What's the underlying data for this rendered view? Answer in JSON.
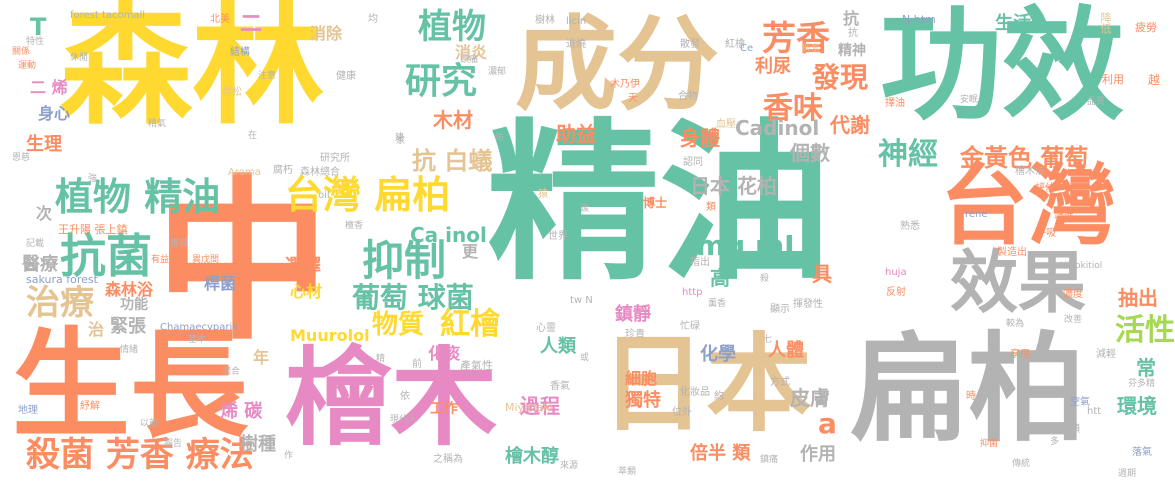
{
  "palette": {
    "green": "#66c2a5",
    "orange": "#fc8d62",
    "blue": "#8da0cb",
    "pink": "#e78ac3",
    "lime": "#a6d854",
    "yellow": "#ffd92f",
    "tan": "#e5c494",
    "gray": "#b3b3b3"
  },
  "words": [
    {
      "id": "w-jingyou",
      "text": "精油",
      "color": "green"
    },
    {
      "id": "w-senlin",
      "text": "森林",
      "color": "yellow"
    },
    {
      "id": "w-zhong",
      "text": "中",
      "color": "orange"
    },
    {
      "id": "w-shengzhang",
      "text": "生長",
      "color": "orange"
    },
    {
      "id": "w-gongxiao",
      "text": "功效",
      "color": "green"
    },
    {
      "id": "w-chengfen",
      "text": "成分",
      "color": "tan"
    },
    {
      "id": "w-bianbai",
      "text": "扁柏",
      "color": "gray"
    },
    {
      "id": "w-huimu",
      "text": "檜木",
      "color": "pink"
    },
    {
      "id": "w-riben",
      "text": "日本",
      "color": "tan"
    },
    {
      "id": "w-taiwan",
      "text": "台灣",
      "color": "orange"
    },
    {
      "id": "w-xiaoguo",
      "text": "效果",
      "color": "gray"
    },
    {
      "id": "w-taiwan-bianbai",
      "text": "台灣 扁柏",
      "color": "yellow"
    },
    {
      "id": "w-zhiwu-jingyou",
      "text": "植物 精油",
      "color": "green"
    },
    {
      "id": "w-kangjun",
      "text": "抗菌",
      "color": "green"
    },
    {
      "id": "w-zhiliao",
      "text": "治療",
      "color": "tan"
    },
    {
      "id": "w-shajun-fangxiang",
      "text": "殺菌 芳香 療法",
      "color": "orange"
    },
    {
      "id": "w-yizhi",
      "text": "抑制",
      "color": "green"
    },
    {
      "id": "w-zhiwu",
      "text": "植物",
      "color": "green"
    },
    {
      "id": "w-yanjiu",
      "text": "研究",
      "color": "green"
    },
    {
      "id": "w-fangxiang",
      "text": "芳香",
      "color": "orange"
    },
    {
      "id": "w-faxian",
      "text": "發現",
      "color": "orange"
    },
    {
      "id": "w-xiangwei",
      "text": "香味",
      "color": "orange"
    },
    {
      "id": "w-shenjing",
      "text": "神經",
      "color": "green"
    },
    {
      "id": "w-jinhuangse",
      "text": "金黃色 葡萄",
      "color": "orange"
    },
    {
      "id": "w-putao-qiujun",
      "text": "葡萄 球菌",
      "color": "green"
    },
    {
      "id": "w-wuzhi",
      "text": "物質",
      "color": "yellow"
    },
    {
      "id": "w-hongkuai",
      "text": "紅檜",
      "color": "yellow"
    },
    {
      "id": "w-huoxing",
      "text": "活性",
      "color": "lime"
    },
    {
      "id": "w-riben-huabai",
      "text": "日本 花柏",
      "color": "gray"
    },
    {
      "id": "w-mgml",
      "text": "mg mL",
      "color": "green"
    },
    {
      "id": "w-kang-baiyi",
      "text": "抗 白蟻",
      "color": "tan"
    },
    {
      "id": "w-muchai",
      "text": "木材",
      "color": "orange"
    },
    {
      "id": "w-cainol",
      "text": "Ca inol",
      "color": "green"
    },
    {
      "id": "w-cadinol",
      "text": "Cadinol",
      "color": "gray"
    },
    {
      "id": "w-shenti",
      "text": "身體",
      "color": "orange"
    },
    {
      "id": "w-zhuyi",
      "text": "助益",
      "color": "orange"
    },
    {
      "id": "w-daixie",
      "text": "代謝",
      "color": "orange"
    },
    {
      "id": "w-lianiao",
      "text": "利尿",
      "color": "orange"
    },
    {
      "id": "w-jingshen",
      "text": "精神",
      "color": "gray"
    },
    {
      "id": "w-shenghuo",
      "text": "生活",
      "color": "green"
    },
    {
      "id": "w-xiaochu",
      "text": "消除",
      "color": "tan"
    },
    {
      "id": "w-xiaoyan",
      "text": "消炎",
      "color": "tan"
    },
    {
      "id": "w-t",
      "text": "T",
      "color": "green"
    },
    {
      "id": "w-forest-tacomall",
      "text": "forest tacomall",
      "color": "gray"
    },
    {
      "id": "w-er-xi",
      "text": "二 烯",
      "color": "pink"
    },
    {
      "id": "w-shenxin",
      "text": "身心",
      "color": "blue"
    },
    {
      "id": "w-shengli",
      "text": "生理",
      "color": "orange"
    },
    {
      "id": "w-xuanze",
      "text": "選擇",
      "color": "orange"
    },
    {
      "id": "w-xincai",
      "text": "心材",
      "color": "yellow"
    },
    {
      "id": "w-senlinyu",
      "text": "森林浴",
      "color": "orange"
    },
    {
      "id": "w-bianjun",
      "text": "桿菌",
      "color": "blue"
    },
    {
      "id": "w-yiliao",
      "text": "醫療",
      "color": "gray"
    },
    {
      "id": "w-jinzhang",
      "text": "緊張",
      "color": "gray"
    },
    {
      "id": "w-gongneng",
      "text": "功能",
      "color": "gray"
    },
    {
      "id": "w-muurolol",
      "text": "Muurolol",
      "color": "yellow"
    },
    {
      "id": "w-xi-tan",
      "text": "烯 碳",
      "color": "pink"
    },
    {
      "id": "w-shuzhong",
      "text": "樹種",
      "color": "gray"
    },
    {
      "id": "w-nian",
      "text": "年",
      "color": "tan"
    },
    {
      "id": "w-gongzuo",
      "text": "工作",
      "color": "orange"
    },
    {
      "id": "w-guocheng",
      "text": "過程",
      "color": "pink"
    },
    {
      "id": "w-huimu-chun",
      "text": "檜木醇",
      "color": "green"
    },
    {
      "id": "w-dute",
      "text": "獨特",
      "color": "orange"
    },
    {
      "id": "w-beiban-lei",
      "text": "倍半 類",
      "color": "orange"
    },
    {
      "id": "w-xibao",
      "text": "細胞",
      "color": "orange"
    },
    {
      "id": "w-renlei",
      "text": "人類",
      "color": "green"
    },
    {
      "id": "w-huatan",
      "text": "化痰",
      "color": "pink"
    },
    {
      "id": "w-renti",
      "text": "人體",
      "color": "orange"
    },
    {
      "id": "w-pifu",
      "text": "皮膚",
      "color": "gray"
    },
    {
      "id": "w-zuoyong",
      "text": "作用",
      "color": "gray"
    },
    {
      "id": "w-huanjing",
      "text": "環境",
      "color": "green"
    },
    {
      "id": "w-gao",
      "text": "高",
      "color": "green"
    },
    {
      "id": "w-ju",
      "text": "具",
      "color": "orange"
    },
    {
      "id": "w-gengshu",
      "text": "個數",
      "color": "gray"
    },
    {
      "id": "w-a",
      "text": "a",
      "color": "orange"
    },
    {
      "id": "w-huaxue",
      "text": "化學",
      "color": "blue"
    },
    {
      "id": "w-zhenjing",
      "text": "鎮靜",
      "color": "pink"
    },
    {
      "id": "w-chouchu",
      "text": "抽出",
      "color": "orange"
    },
    {
      "id": "w-chang",
      "text": "常",
      "color": "green"
    },
    {
      "id": "w-geng",
      "text": "更",
      "color": "gray"
    },
    {
      "id": "w-ci",
      "text": "次",
      "color": "gray"
    },
    {
      "id": "w-zhi",
      "text": "治",
      "color": "tan"
    },
    {
      "id": "w-kang",
      "text": "抗",
      "color": "gray"
    },
    {
      "id": "w-wang-zhang",
      "text": "王升陽 張上鎮",
      "color": "orange"
    },
    {
      "id": "w-sakura-forest",
      "text": "sakura forest",
      "color": "blue"
    },
    {
      "id": "w-chamaecyparis",
      "text": "Chamaecyparis",
      "color": "blue"
    },
    {
      "id": "w-miyazaki",
      "text": "Miyazaki",
      "color": "tan"
    },
    {
      "id": "w-yuanfang",
      "text": "猿",
      "color": "tan"
    },
    {
      "id": "w-xingfen",
      "text": "興奮",
      "color": "tan"
    },
    {
      "id": "w-xuefen",
      "text": "血壓",
      "color": "tan"
    },
    {
      "id": "w-jiangdi",
      "text": "降低",
      "color": "tan"
    },
    {
      "id": "w-pilao",
      "text": "疲勞",
      "color": "orange"
    },
    {
      "id": "w-liyong",
      "text": "利用",
      "color": "orange"
    },
    {
      "id": "w-yue",
      "text": "越",
      "color": "orange"
    },
    {
      "id": "w-sanfa",
      "text": "散發",
      "color": "gray"
    },
    {
      "id": "w-tuiyang",
      "text": "退燒",
      "color": "gray"
    },
    {
      "id": "w-licin",
      "text": "licin",
      "color": "gray"
    },
    {
      "id": "w-shulin",
      "text": "樹林",
      "color": "gray"
    },
    {
      "id": "w-nhtm",
      "text": "N htm",
      "color": "blue"
    },
    {
      "id": "w-hongyao",
      "text": "紅檜",
      "color": "gray"
    },
    {
      "id": "w-ce",
      "text": "Ce",
      "color": "blue"
    },
    {
      "id": "w-huwujian",
      "text": "木乃伊",
      "color": "orange"
    },
    {
      "id": "w-tian",
      "text": "天",
      "color": "orange"
    },
    {
      "id": "w-hewu",
      "text": "合物",
      "color": "gray"
    },
    {
      "id": "w-aroma",
      "text": "Aroma",
      "color": "tan"
    },
    {
      "id": "w-oil",
      "text": "oil",
      "color": "gray"
    },
    {
      "id": "w-jiankang",
      "text": "健康",
      "color": "gray"
    },
    {
      "id": "w-yanjiusuo",
      "text": "研究所",
      "color": "gray"
    },
    {
      "id": "w-senlin-zonghe",
      "text": "森林總合",
      "color": "gray"
    },
    {
      "id": "w-xuedong",
      "text": "雪松",
      "color": "tan"
    },
    {
      "id": "w-yundong",
      "text": "運動",
      "color": "orange"
    },
    {
      "id": "w-guanxi",
      "text": "關係",
      "color": "orange"
    },
    {
      "id": "w-texing",
      "text": "特性",
      "color": "gray"
    },
    {
      "id": "w-xiuxian",
      "text": "休閒",
      "color": "gray"
    },
    {
      "id": "w-jiegou",
      "text": "結構",
      "color": "blue"
    },
    {
      "id": "w-beimei",
      "text": "北美",
      "color": "orange"
    },
    {
      "id": "w-jun",
      "text": "均",
      "color": "gray"
    },
    {
      "id": "w-jingjie",
      "text": "精氣",
      "color": "gray"
    },
    {
      "id": "w-fuxi",
      "text": "腐朽",
      "color": "gray"
    },
    {
      "id": "w-huyi",
      "text": "恩慈",
      "color": "gray"
    },
    {
      "id": "w-zengjin",
      "text": "增進",
      "color": "orange"
    },
    {
      "id": "w-pinggu",
      "text": "評估",
      "color": "orange"
    },
    {
      "id": "w-huxi",
      "text": "呼吸",
      "color": "orange"
    },
    {
      "id": "w-shuxi",
      "text": "熟悉",
      "color": "gray"
    },
    {
      "id": "w-zhizao",
      "text": "製造出",
      "color": "orange"
    },
    {
      "id": "w-hinokitiol",
      "text": "Hinokitiol",
      "color": "gray"
    },
    {
      "id": "w-huja",
      "text": "huja",
      "color": "pink"
    },
    {
      "id": "w-rene",
      "text": "rene",
      "color": "blue"
    },
    {
      "id": "w-nongdu",
      "text": "濃度",
      "color": "orange"
    },
    {
      "id": "w-fanshe",
      "text": "反射",
      "color": "orange"
    },
    {
      "id": "w-jianqing",
      "text": "減輕",
      "color": "gray"
    },
    {
      "id": "w-xiangyong",
      "text": "享用",
      "color": "orange"
    },
    {
      "id": "w-kongqi",
      "text": "空氣",
      "color": "blue"
    },
    {
      "id": "w-zhonglei",
      "text": "種類",
      "color": "gray"
    },
    {
      "id": "w-htt",
      "text": "htt",
      "color": "gray"
    },
    {
      "id": "w-yiying",
      "text": "抑菌",
      "color": "orange"
    },
    {
      "id": "w-luozhu",
      "text": "落氣",
      "color": "blue"
    },
    {
      "id": "w-fenduojing",
      "text": "芬多精",
      "color": "gray"
    },
    {
      "id": "w-ditu",
      "text": "地理",
      "color": "blue"
    },
    {
      "id": "w-shujie",
      "text": "紓解",
      "color": "orange"
    },
    {
      "id": "w-qingxu",
      "text": "情緒",
      "color": "gray"
    },
    {
      "id": "w-jixie",
      "text": "記載",
      "color": "gray"
    },
    {
      "id": "w-youyi",
      "text": "有益",
      "color": "orange"
    },
    {
      "id": "w-yiwuzhi",
      "text": "異戊間",
      "color": "orange"
    },
    {
      "id": "w-chanqixing",
      "text": "產氣性",
      "color": "gray"
    },
    {
      "id": "w-xiangqi",
      "text": "香氣",
      "color": "gray"
    },
    {
      "id": "w-huazhuangpin",
      "text": "化妝品",
      "color": "gray"
    },
    {
      "id": "w-yue2",
      "text": "約",
      "color": "gray"
    },
    {
      "id": "w-weiwai",
      "text": "位外",
      "color": "gray"
    },
    {
      "id": "w-fangshi",
      "text": "方式",
      "color": "gray"
    },
    {
      "id": "w-zhenguo",
      "text": "珍貴",
      "color": "gray"
    },
    {
      "id": "w-xinling",
      "text": "心靈",
      "color": "gray"
    },
    {
      "id": "w-http",
      "text": "http",
      "color": "pink"
    },
    {
      "id": "w-xunxiang",
      "text": "薰香",
      "color": "gray"
    },
    {
      "id": "w-zhaxuanxing",
      "text": "揮發性",
      "color": "gray"
    },
    {
      "id": "w-xianshi",
      "text": "顯示",
      "color": "gray"
    },
    {
      "id": "w-zhichu",
      "text": "指出",
      "color": "gray"
    },
    {
      "id": "w-shijie",
      "text": "世界",
      "color": "gray"
    },
    {
      "id": "w-twn",
      "text": "tw N",
      "color": "gray"
    },
    {
      "id": "w-boshi",
      "text": "博士",
      "color": "orange"
    },
    {
      "id": "w-lei",
      "text": "類",
      "color": "orange"
    },
    {
      "id": "w-renshi",
      "text": "認同",
      "color": "gray"
    },
    {
      "id": "w-xiao",
      "text": "抗",
      "color": "gray"
    },
    {
      "id": "w-zhiyouxiang",
      "text": "擇油",
      "color": "orange"
    },
    {
      "id": "w-huimuyou",
      "text": "檜木油",
      "color": "gray"
    },
    {
      "id": "w-pingjia",
      "text": "品質",
      "color": "gray"
    },
    {
      "id": "w-tan",
      "text": "碳",
      "color": "gray"
    },
    {
      "id": "w-sha",
      "text": "殺",
      "color": "gray"
    },
    {
      "id": "w-jian",
      "text": "建",
      "color": "gray"
    },
    {
      "id": "w-zhiji",
      "text": "之稱為",
      "color": "gray"
    },
    {
      "id": "w-xiandai",
      "text": "現代人",
      "color": "gray"
    },
    {
      "id": "w-yi",
      "text": "依",
      "color": "gray"
    },
    {
      "id": "w-qian",
      "text": "前",
      "color": "gray"
    },
    {
      "id": "w-jing",
      "text": "精",
      "color": "gray"
    },
    {
      "id": "w-huo",
      "text": "或",
      "color": "gray"
    },
    {
      "id": "w-qi",
      "text": "七",
      "color": "gray"
    },
    {
      "id": "w-wang",
      "text": "忙碌",
      "color": "gray"
    },
    {
      "id": "w-zhenglei",
      "text": "萃類",
      "color": "gray"
    },
    {
      "id": "w-shi",
      "text": "時",
      "color": "orange"
    },
    {
      "id": "w-jiatianlai",
      "text": "家",
      "color": "gray"
    },
    {
      "id": "w-zai",
      "text": "在",
      "color": "gray"
    },
    {
      "id": "w-you",
      "text": "佑",
      "color": "gray"
    },
    {
      "id": "w-duo",
      "text": "多",
      "color": "gray"
    },
    {
      "id": "w-qiang",
      "text": "強",
      "color": "gray"
    },
    {
      "id": "w-tianxiang",
      "text": "檀香",
      "color": "gray"
    },
    {
      "id": "w-ji",
      "text": "鎮痛",
      "color": "gray"
    },
    {
      "id": "w-zhe",
      "text": "作",
      "color": "gray"
    },
    {
      "id": "w-zhuyi2",
      "text": "注意",
      "color": "gray"
    },
    {
      "id": "w-sanguang",
      "text": "頭痛",
      "color": "gray"
    },
    {
      "id": "w-jingfu",
      "text": "濃郁",
      "color": "gray"
    },
    {
      "id": "w-yian",
      "text": "安眠",
      "color": "gray"
    },
    {
      "id": "w-qiyi",
      "text": "改善",
      "color": "gray"
    },
    {
      "id": "w-zhongshi",
      "text": "較為",
      "color": "gray"
    },
    {
      "id": "w-shu",
      "text": "獲得",
      "color": "gray"
    },
    {
      "id": "w-bao",
      "text": "報告",
      "color": "gray"
    },
    {
      "id": "w-yiqian",
      "text": "以前",
      "color": "gray"
    },
    {
      "id": "w-shehe",
      "text": "適合",
      "color": "gray"
    },
    {
      "id": "w-jiben",
      "text": "基本",
      "color": "gray"
    },
    {
      "id": "w-chuan",
      "text": "傳統",
      "color": "gray"
    },
    {
      "id": "w-zhou",
      "text": "週期",
      "color": "gray"
    },
    {
      "id": "w-lai",
      "text": "來源",
      "color": "gray"
    },
    {
      "id": "w-er",
      "text": "二",
      "color": "pink"
    }
  ]
}
